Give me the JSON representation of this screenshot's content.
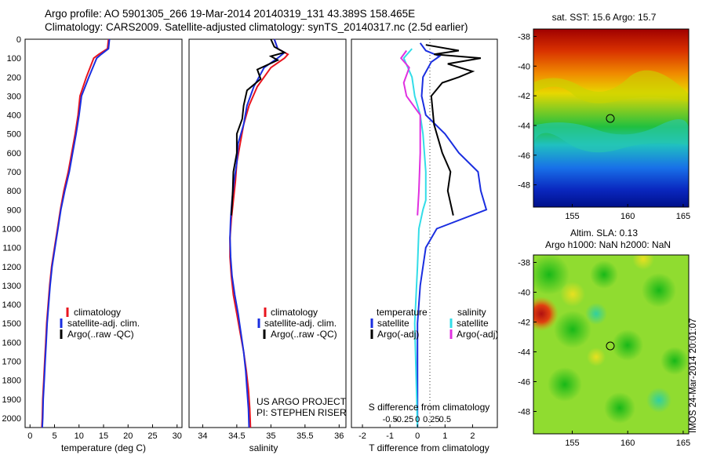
{
  "header": {
    "line1": "Argo profile: AO 5901305_266 19-Mar-2014 20140319_131 43.389S 158.465E",
    "line2": "Climatology: CARS2009. Satellite-adjusted climatology: synTS_20140317.nc (2.5d earlier)"
  },
  "stamp": "IMOS 24-Mar-2014 20:01:07",
  "colors": {
    "climatology": "#e8141e",
    "satellite": "#1a2ee0",
    "argo": "#000000",
    "salinity_satellite": "#33dde8",
    "salinity_argo": "#e030e0"
  },
  "chart_data": [
    {
      "type": "line",
      "xlabel": "temperature (deg C)",
      "xlim": [
        -1,
        31
      ],
      "xticks": [
        0,
        5,
        10,
        15,
        20,
        25,
        30
      ],
      "ylim": [
        2050,
        0
      ],
      "yticks": [
        0,
        100,
        200,
        300,
        400,
        500,
        600,
        700,
        800,
        900,
        1000,
        1100,
        1200,
        1300,
        1400,
        1500,
        1600,
        1700,
        1800,
        1900,
        2000
      ],
      "legend": [
        "climatology",
        "satellite-adj. clim.",
        "Argo(..raw -QC)"
      ],
      "series": [
        {
          "name": "climatology",
          "color": "#e8141e",
          "points": [
            [
              16.0,
              0
            ],
            [
              15.8,
              50
            ],
            [
              14.0,
              80
            ],
            [
              13.0,
              100
            ],
            [
              11.5,
              200
            ],
            [
              10.2,
              300
            ],
            [
              9.8,
              400
            ],
            [
              9.2,
              500
            ],
            [
              8.5,
              600
            ],
            [
              7.8,
              700
            ],
            [
              6.9,
              800
            ],
            [
              6.2,
              900
            ],
            [
              5.6,
              1000
            ],
            [
              5.0,
              1100
            ],
            [
              4.4,
              1200
            ],
            [
              4.0,
              1300
            ],
            [
              3.7,
              1400
            ],
            [
              3.4,
              1500
            ],
            [
              3.2,
              1600
            ],
            [
              3.0,
              1700
            ],
            [
              2.8,
              1800
            ],
            [
              2.6,
              1900
            ],
            [
              2.5,
              2000
            ],
            [
              2.4,
              2050
            ]
          ]
        },
        {
          "name": "satellite-adj. clim.",
          "color": "#1a2ee0",
          "points": [
            [
              16.2,
              0
            ],
            [
              16.0,
              50
            ],
            [
              14.5,
              80
            ],
            [
              13.6,
              100
            ],
            [
              12.0,
              200
            ],
            [
              10.5,
              300
            ],
            [
              10.0,
              400
            ],
            [
              9.4,
              500
            ],
            [
              8.7,
              600
            ],
            [
              8.0,
              700
            ],
            [
              7.1,
              800
            ],
            [
              6.3,
              900
            ],
            [
              5.7,
              1000
            ],
            [
              5.1,
              1100
            ],
            [
              4.5,
              1200
            ],
            [
              4.1,
              1300
            ],
            [
              3.8,
              1400
            ],
            [
              3.5,
              1500
            ],
            [
              3.3,
              1600
            ],
            [
              3.1,
              1700
            ],
            [
              2.9,
              1800
            ],
            [
              2.7,
              1900
            ],
            [
              2.6,
              2000
            ],
            [
              2.5,
              2050
            ]
          ]
        }
      ]
    },
    {
      "type": "line",
      "xlabel": "salinity",
      "xlim": [
        33.8,
        36.1
      ],
      "xticks": [
        34,
        34.5,
        35,
        35.5,
        36
      ],
      "ylim": [
        2050,
        0
      ],
      "legend": [
        "climatology",
        "satellite-adj. clim.",
        "Argo(..raw -QC)"
      ],
      "annotations": [
        "US ARGO PROJECT",
        "PI: STEPHEN RISER"
      ],
      "series": [
        {
          "name": "climatology",
          "color": "#e8141e",
          "points": [
            [
              35.05,
              0
            ],
            [
              35.1,
              50
            ],
            [
              35.25,
              80
            ],
            [
              35.2,
              100
            ],
            [
              35.0,
              150
            ],
            [
              34.8,
              250
            ],
            [
              34.68,
              350
            ],
            [
              34.6,
              450
            ],
            [
              34.55,
              550
            ],
            [
              34.5,
              650
            ],
            [
              34.48,
              750
            ],
            [
              34.45,
              850
            ],
            [
              34.42,
              950
            ],
            [
              34.4,
              1050
            ],
            [
              34.4,
              1150
            ],
            [
              34.42,
              1250
            ],
            [
              34.45,
              1350
            ],
            [
              34.5,
              1450
            ],
            [
              34.55,
              1550
            ],
            [
              34.6,
              1650
            ],
            [
              34.64,
              1750
            ],
            [
              34.67,
              1850
            ],
            [
              34.69,
              1950
            ],
            [
              34.7,
              2050
            ]
          ]
        },
        {
          "name": "satellite-adj. clim.",
          "color": "#1a2ee0",
          "points": [
            [
              35.05,
              0
            ],
            [
              35.1,
              50
            ],
            [
              35.2,
              70
            ],
            [
              35.1,
              100
            ],
            [
              34.9,
              150
            ],
            [
              34.75,
              250
            ],
            [
              34.65,
              350
            ],
            [
              34.6,
              450
            ],
            [
              34.52,
              550
            ],
            [
              34.5,
              650
            ],
            [
              34.46,
              750
            ],
            [
              34.43,
              850
            ],
            [
              34.41,
              950
            ],
            [
              34.4,
              1050
            ],
            [
              34.41,
              1150
            ],
            [
              34.43,
              1250
            ],
            [
              34.47,
              1350
            ],
            [
              34.52,
              1450
            ],
            [
              34.56,
              1550
            ],
            [
              34.6,
              1650
            ],
            [
              34.63,
              1750
            ],
            [
              34.65,
              1850
            ],
            [
              34.67,
              1950
            ],
            [
              34.68,
              2050
            ]
          ]
        },
        {
          "name": "Argo(..raw -QC)",
          "color": "#000000",
          "points": [
            [
              35.0,
              0
            ],
            [
              35.05,
              40
            ],
            [
              35.2,
              70
            ],
            [
              35.0,
              90
            ],
            [
              35.1,
              110
            ],
            [
              34.8,
              160
            ],
            [
              34.85,
              210
            ],
            [
              34.65,
              270
            ],
            [
              34.6,
              350
            ],
            [
              34.58,
              420
            ],
            [
              34.5,
              500
            ],
            [
              34.5,
              600
            ],
            [
              34.45,
              700
            ],
            [
              34.44,
              800
            ],
            [
              34.43,
              870
            ],
            [
              34.42,
              930
            ]
          ]
        }
      ]
    },
    {
      "type": "line",
      "xlabel": "T difference from climatology",
      "xlabel2": "S difference from climatology",
      "xlim": [
        -2.4,
        2.9
      ],
      "xticks": [
        -2,
        -1,
        0,
        1,
        2
      ],
      "xticks2": [
        "-0.5",
        "-0.25",
        "0",
        "0.25",
        "0.5"
      ],
      "ylim": [
        2050,
        0
      ],
      "legend_temperature_title": "temperature",
      "legend_salinity_title": "salinity",
      "legend_temperature": [
        "satellite",
        "Argo(-adj)"
      ],
      "legend_salinity": [
        "satellite",
        "Argo(-adj)"
      ],
      "series": [
        {
          "name": "satellite",
          "color": "#1a2ee0",
          "points": [
            [
              0.1,
              20
            ],
            [
              0.3,
              60
            ],
            [
              0.8,
              90
            ],
            [
              0.5,
              120
            ],
            [
              0.2,
              200
            ],
            [
              0.15,
              300
            ],
            [
              0.3,
              400
            ],
            [
              1.0,
              500
            ],
            [
              1.5,
              600
            ],
            [
              2.2,
              700
            ],
            [
              2.3,
              800
            ],
            [
              2.5,
              900
            ],
            [
              0.7,
              1000
            ],
            [
              0.3,
              1100
            ],
            [
              0.1,
              1300
            ],
            [
              0.0,
              1500
            ],
            [
              0.0,
              2050
            ]
          ]
        },
        {
          "name": "Argo(-adj)",
          "color": "#000000",
          "points": [
            [
              0.3,
              30
            ],
            [
              1.5,
              60
            ],
            [
              0.6,
              80
            ],
            [
              2.3,
              100
            ],
            [
              1.1,
              130
            ],
            [
              2.0,
              170
            ],
            [
              1.5,
              200
            ],
            [
              0.9,
              230
            ],
            [
              0.5,
              300
            ],
            [
              0.6,
              450
            ],
            [
              0.9,
              600
            ],
            [
              1.2,
              700
            ],
            [
              1.1,
              800
            ],
            [
              1.3,
              930
            ]
          ]
        },
        {
          "name": "satellite",
          "color": "#33dde8",
          "points": [
            [
              -0.2,
              50
            ],
            [
              -0.5,
              100
            ],
            [
              -0.2,
              200
            ],
            [
              -0.1,
              300
            ],
            [
              0.1,
              400
            ],
            [
              0.2,
              500
            ],
            [
              0.3,
              700
            ],
            [
              0.3,
              850
            ],
            [
              0.2,
              900
            ],
            [
              0.05,
              1000
            ],
            [
              0.0,
              1200
            ],
            [
              -0.1,
              1500
            ],
            [
              0.0,
              2050
            ]
          ]
        },
        {
          "name": "Argo(-adj)",
          "color": "#e030e0",
          "points": [
            [
              -0.4,
              60
            ],
            [
              -0.6,
              100
            ],
            [
              -0.3,
              150
            ],
            [
              -0.5,
              230
            ],
            [
              -0.4,
              300
            ],
            [
              0.1,
              400
            ],
            [
              0.1,
              600
            ],
            [
              0.05,
              800
            ],
            [
              0.0,
              930
            ]
          ]
        }
      ]
    },
    {
      "type": "heatmap",
      "title": "sat. SST: 15.6 Argo: 15.7",
      "xticks": [
        155,
        160,
        165
      ],
      "yticks": [
        -38,
        -40,
        -42,
        -44,
        -46,
        -48
      ],
      "xlim": [
        151.5,
        165.5
      ],
      "ylim": [
        -49.5,
        -37.5
      ],
      "marker": [
        158.465,
        -43.389
      ]
    },
    {
      "type": "heatmap",
      "title": "Altim. SLA: 0.13",
      "subtitle": "Argo h1000: NaN h2000: NaN",
      "xticks": [
        155,
        160,
        165
      ],
      "yticks": [
        -38,
        -40,
        -42,
        -44,
        -46,
        -48
      ],
      "xlim": [
        151.5,
        165.5
      ],
      "ylim": [
        -49.5,
        -37.5
      ],
      "marker": [
        158.465,
        -43.389
      ]
    }
  ]
}
